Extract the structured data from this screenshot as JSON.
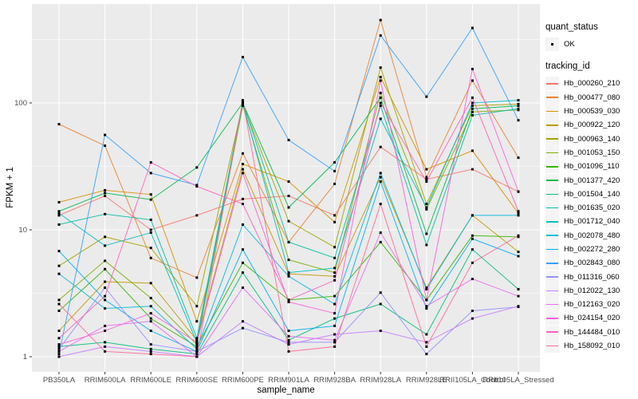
{
  "chart_data": {
    "type": "line",
    "title": "",
    "xlabel": "sample_name",
    "ylabel": "FPKM + 1",
    "y_scale": "log10",
    "y_ticks": [
      1,
      10,
      100
    ],
    "y_minor_ticks": [
      3.162,
      31.62,
      316.2
    ],
    "ylim": [
      0.76,
      600
    ],
    "grid": true,
    "legend_position": "right",
    "categories": [
      "PB350LA",
      "RRIM600LA",
      "RRIM600LE",
      "RRIM600SE",
      "RRIM600PE",
      "RRIM901LA",
      "RRIM928BA",
      "RRIM928LA",
      "RRIM928LE",
      "RRII105LA_Control",
      "RRII105LA_Stressed"
    ],
    "legend": {
      "quant_status": {
        "title": "quant_status",
        "items": [
          {
            "label": "OK",
            "marker": "point",
            "color": "#000000"
          }
        ]
      },
      "tracking_id_title": "tracking_id"
    },
    "series": [
      {
        "tracking_id": "Hb_000260_210",
        "color": "#F8766D",
        "values": [
          13,
          18.5,
          10,
          13,
          17.5,
          18.5,
          13,
          45,
          25,
          30,
          20
        ]
      },
      {
        "tracking_id": "Hb_000477_080",
        "color": "#EA8331",
        "values": [
          68,
          46,
          6,
          4.2,
          40,
          8,
          23,
          450,
          26,
          150,
          37
        ]
      },
      {
        "tracking_id": "Hb_000539_030",
        "color": "#D89000",
        "values": [
          16.5,
          20.5,
          19,
          1.9,
          33,
          24,
          11.5,
          160,
          30,
          42,
          13.5
        ]
      },
      {
        "tracking_id": "Hb_000922_120",
        "color": "#C09B00",
        "values": [
          1.6,
          3.9,
          3.8,
          1.35,
          30,
          4.5,
          4.3,
          26,
          3.5,
          13,
          6.7
        ]
      },
      {
        "tracking_id": "Hb_000963_140",
        "color": "#A3A500",
        "values": [
          5.2,
          8.8,
          7.2,
          2.5,
          98,
          11.7,
          7.3,
          190,
          16,
          95,
          98
        ]
      },
      {
        "tracking_id": "Hb_001053_150",
        "color": "#7CAE00",
        "values": [
          2.8,
          5.7,
          2.9,
          1.25,
          95,
          5.8,
          4.6,
          120,
          14.5,
          85,
          88
        ]
      },
      {
        "tracking_id": "Hb_001096_110",
        "color": "#39B600",
        "values": [
          2.3,
          4.9,
          2.0,
          1.2,
          5.5,
          2.8,
          3.0,
          8,
          2.8,
          9,
          8.8
        ]
      },
      {
        "tracking_id": "Hb_001377_420",
        "color": "#00BB4E",
        "values": [
          14,
          19.5,
          17.3,
          31,
          100,
          15,
          34,
          110,
          9.3,
          90,
          95
        ]
      },
      {
        "tracking_id": "Hb_001504_140",
        "color": "#00BF7D",
        "values": [
          1.2,
          1.3,
          1.15,
          1.05,
          4.6,
          1.35,
          2.0,
          2.6,
          1.5,
          7,
          3.4
        ]
      },
      {
        "tracking_id": "Hb_001635_020",
        "color": "#00C1A3",
        "values": [
          11,
          13.3,
          12,
          1.4,
          102,
          8,
          6,
          95,
          7.6,
          80,
          90
        ]
      },
      {
        "tracking_id": "Hb_001712_040",
        "color": "#00BFC4",
        "values": [
          13.5,
          7.5,
          9.5,
          1.3,
          100,
          4.6,
          5,
          75,
          15,
          100,
          105
        ]
      },
      {
        "tracking_id": "Hb_002078_480",
        "color": "#00BAE0",
        "values": [
          4.5,
          2.4,
          2.5,
          1.15,
          11,
          4.3,
          2.6,
          28,
          3.4,
          13,
          13
        ]
      },
      {
        "tracking_id": "Hb_002272_280",
        "color": "#00B0F6",
        "values": [
          6.8,
          2.8,
          1.6,
          1.1,
          7,
          1.6,
          1.75,
          24,
          2.4,
          8.5,
          6.2
        ]
      },
      {
        "tracking_id": "Hb_002843_080",
        "color": "#35A2FF",
        "values": [
          1.05,
          56,
          28,
          22.5,
          230,
          51,
          29,
          340,
          112,
          390,
          73
        ]
      },
      {
        "tracking_id": "Hb_011316_060",
        "color": "#9590FF",
        "values": [
          1.15,
          3.5,
          1.25,
          1.1,
          1.68,
          1.3,
          1.3,
          3.2,
          1.05,
          2.3,
          2.47
        ]
      },
      {
        "tracking_id": "Hb_012022_130",
        "color": "#C77CFF",
        "values": [
          1.0,
          1.2,
          1.1,
          1.0,
          1.9,
          1.25,
          1.5,
          1.6,
          1.3,
          2.0,
          2.5
        ]
      },
      {
        "tracking_id": "Hb_012163_020",
        "color": "#E76BF3",
        "values": [
          1.1,
          1.75,
          1.9,
          1.0,
          3.5,
          1.45,
          1.35,
          9.5,
          2.5,
          4.1,
          3.0
        ]
      },
      {
        "tracking_id": "Hb_024154_020",
        "color": "#FA62DB",
        "values": [
          1.25,
          1.6,
          2.2,
          1.3,
          28,
          2.7,
          2.2,
          150,
          2.8,
          185,
          20
        ]
      },
      {
        "tracking_id": "Hb_144484_010",
        "color": "#FF62BC",
        "values": [
          1.4,
          3.0,
          34,
          22,
          16,
          2.8,
          4.0,
          100,
          24,
          110,
          14
        ]
      },
      {
        "tracking_id": "Hb_158092_010",
        "color": "#FF6A98",
        "values": [
          2.6,
          1.1,
          1.05,
          1.0,
          105,
          1.1,
          1.2,
          16,
          1.2,
          5.5,
          9
        ]
      }
    ],
    "colors": {
      "panel_bg": "#EBEBEB",
      "grid": "#FFFFFF",
      "point": "#000000",
      "tick": "#333333",
      "tick_label": "#4D4D4D",
      "legend_key_bg": "#F4F4F4"
    }
  }
}
